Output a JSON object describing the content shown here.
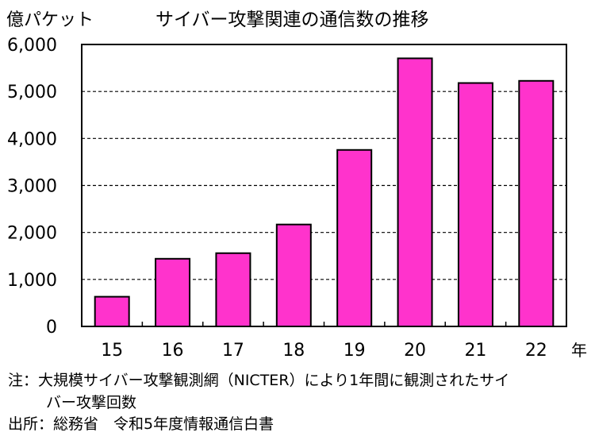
{
  "chart_data": {
    "type": "bar",
    "title": "サイバー攻撃関連の通信数の推移",
    "ylabel": "億パケット",
    "xlabel": "年",
    "categories": [
      "15",
      "16",
      "17",
      "18",
      "19",
      "20",
      "21",
      "22"
    ],
    "values": [
      632,
      1440,
      1559,
      2169,
      3756,
      5705,
      5180,
      5226
    ],
    "ylim": [
      0,
      6000
    ],
    "yticks": [
      "0",
      "1,000",
      "2,000",
      "3,000",
      "4,000",
      "5,000",
      "6,000"
    ],
    "grid": true,
    "bar_color": "#FF33CC"
  },
  "notes": {
    "note_line1": "注：大規模サイバー攻撃観測網（NICTER）により1年間に観測されたサイ",
    "note_line2": "バー攻撃回数",
    "source": "出所：総務省　令和5年度情報通信白書"
  }
}
